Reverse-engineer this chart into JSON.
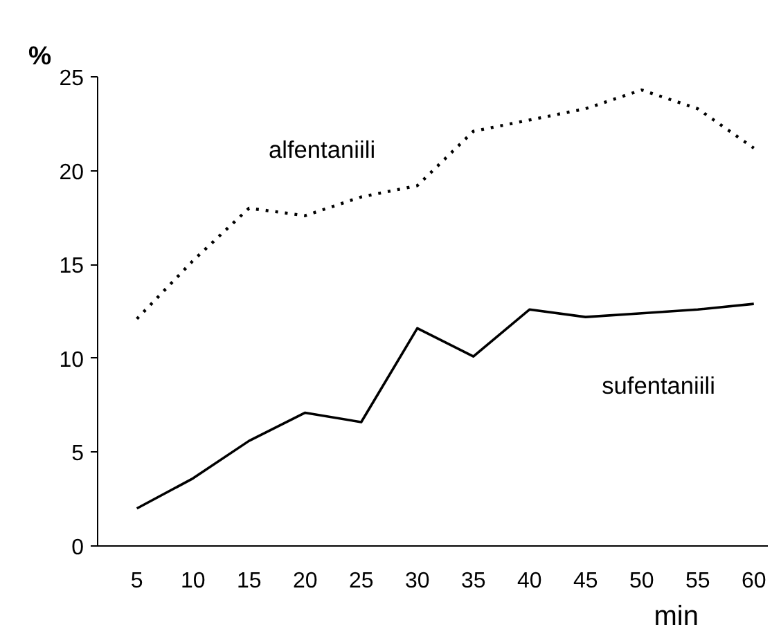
{
  "chart_data": {
    "type": "line",
    "xlabel": "min",
    "ylabel": "%",
    "categories": [
      "5",
      "10",
      "15",
      "20",
      "25",
      "30",
      "35",
      "40",
      "45",
      "50",
      "55",
      "60"
    ],
    "series": [
      {
        "name": "alfentaniili",
        "color": "#000000",
        "line_style": "dotted",
        "values": [
          12.1,
          15.2,
          18.0,
          17.6,
          18.6,
          19.2,
          22.1,
          22.7,
          23.3,
          24.3,
          23.3,
          21.2
        ]
      },
      {
        "name": "sufentaniili",
        "color": "#000000",
        "line_style": "solid",
        "values": [
          2.0,
          3.6,
          5.6,
          7.1,
          6.6,
          11.6,
          10.1,
          12.6,
          12.2,
          12.4,
          12.6,
          12.9
        ]
      }
    ],
    "ylim": [
      0,
      25
    ],
    "yticks": [
      0,
      5,
      10,
      15,
      20,
      25
    ],
    "grid": false,
    "marker": "none"
  }
}
